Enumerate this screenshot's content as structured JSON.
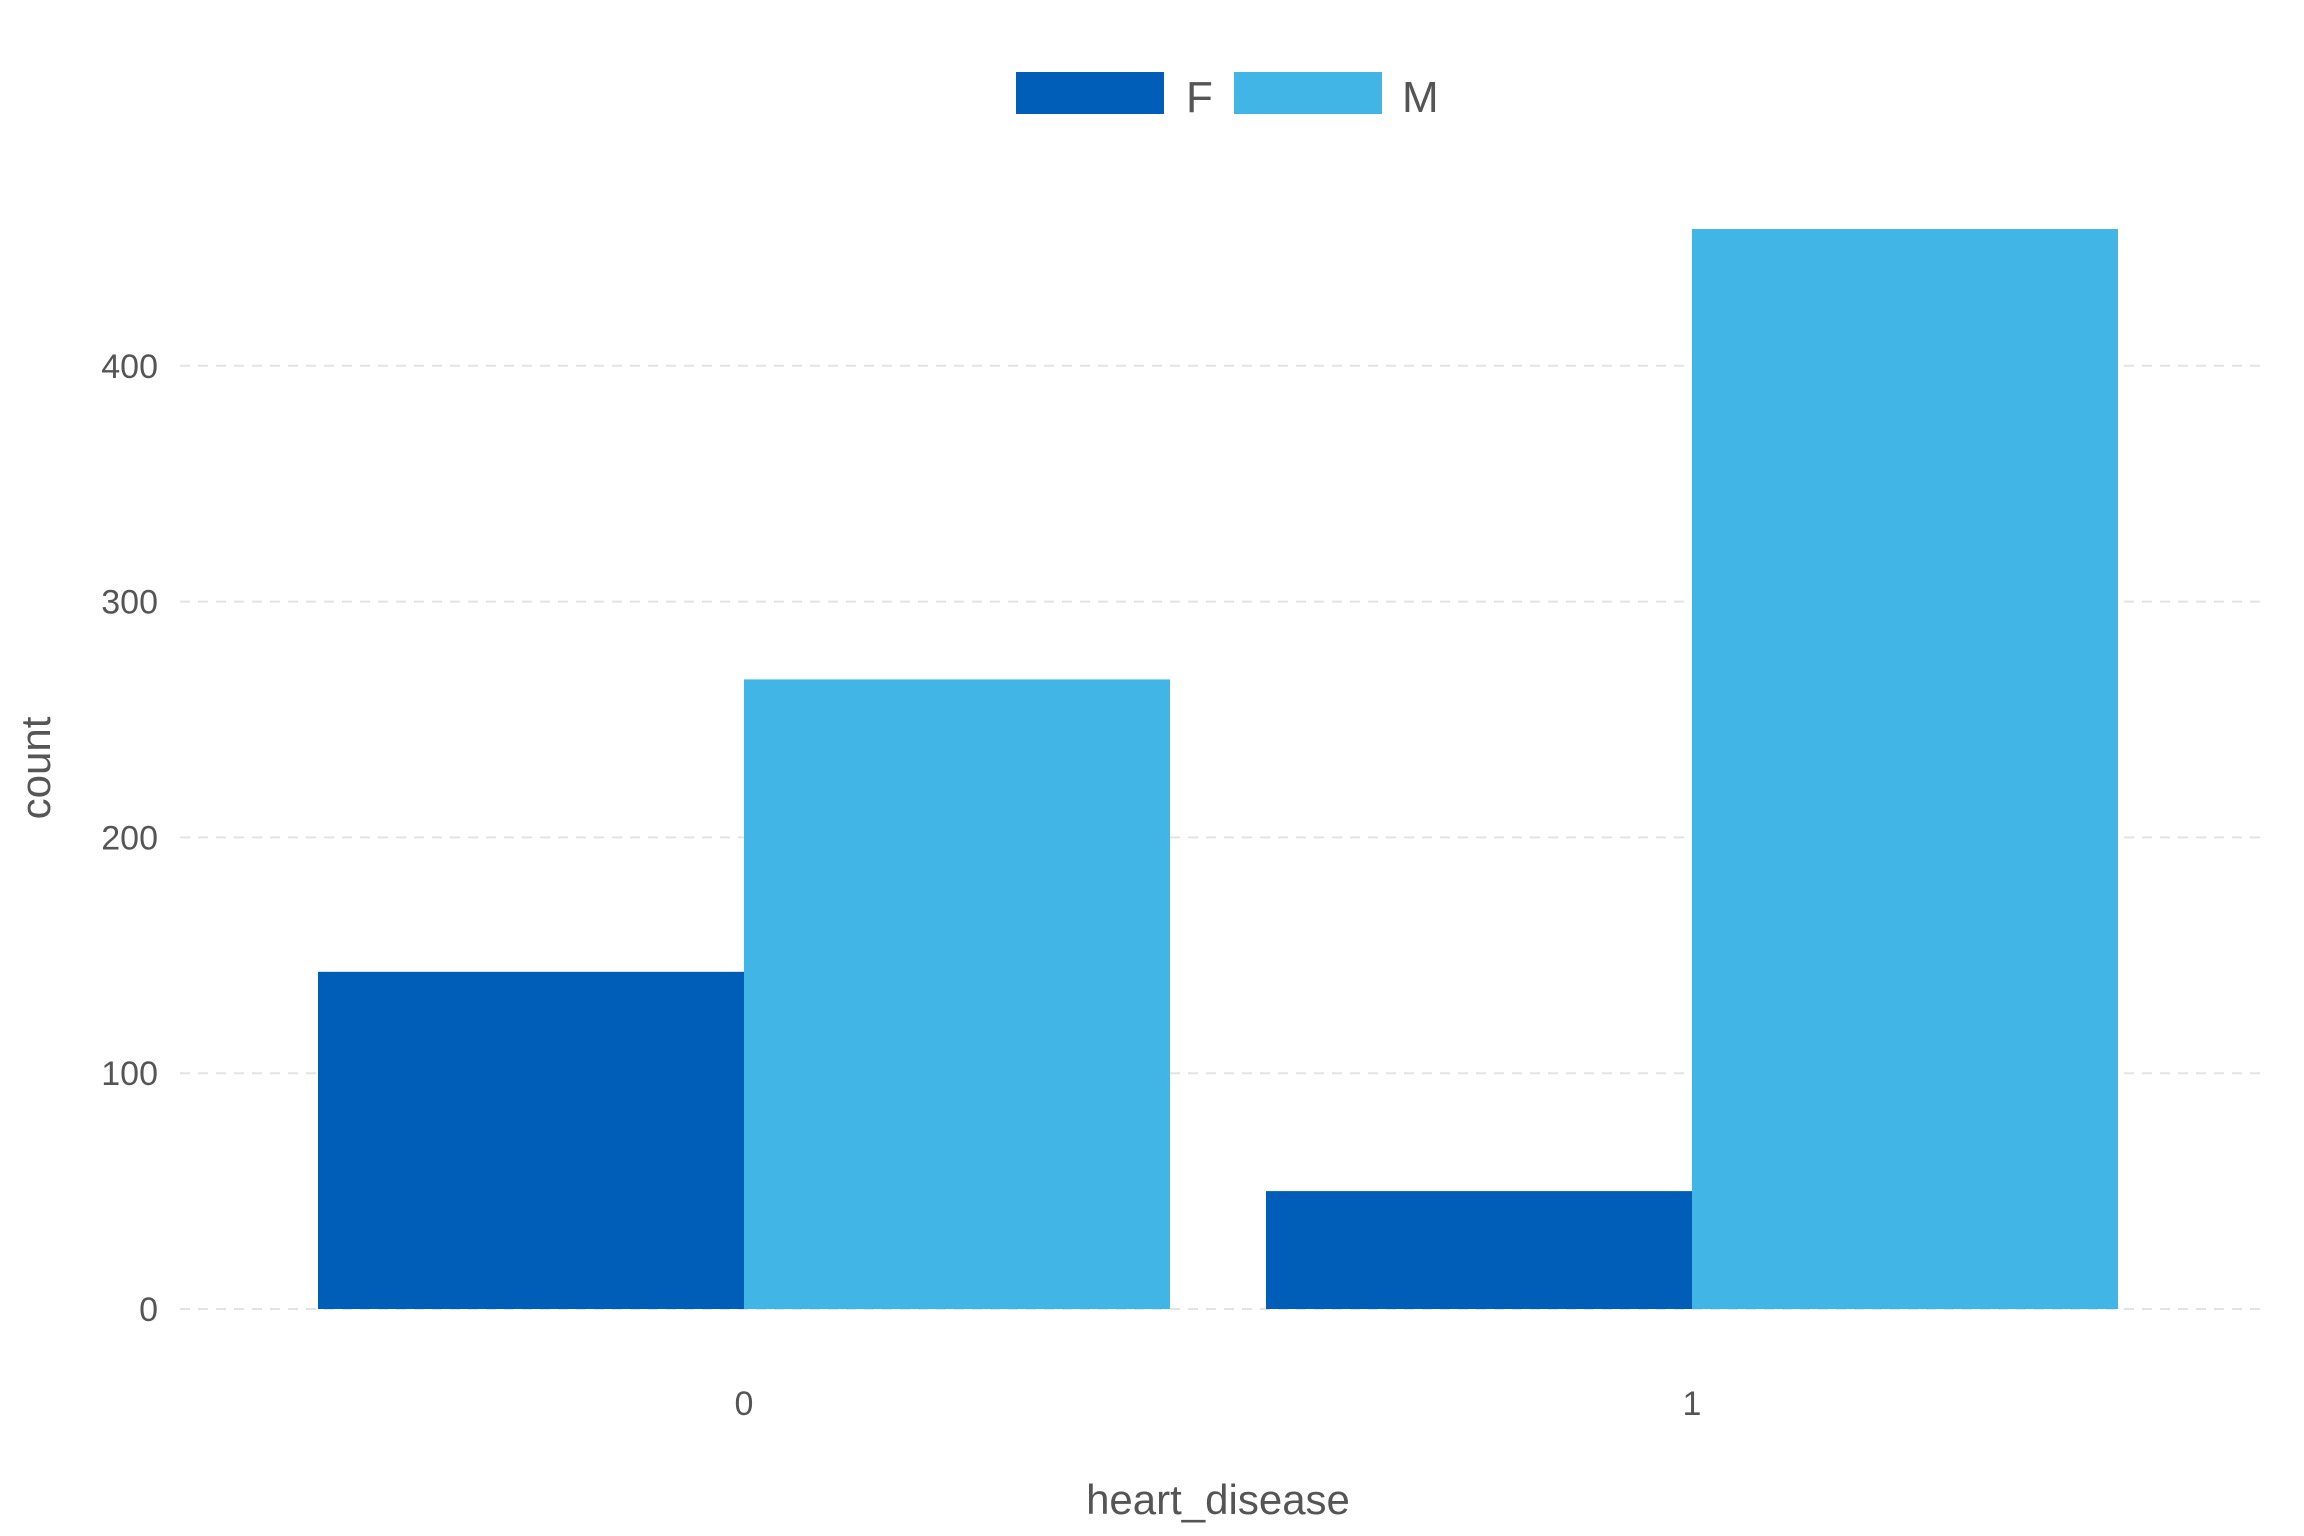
{
  "chart_data": {
    "type": "bar",
    "xlabel": "heart_disease",
    "ylabel": "count",
    "categories": [
      "0",
      "1"
    ],
    "series": [
      {
        "name": "F",
        "values": [
          143,
          50
        ],
        "color": "#005eb8"
      },
      {
        "name": "M",
        "values": [
          267,
          458
        ],
        "color": "#41b6e6"
      }
    ],
    "ylim": [
      0,
      470
    ],
    "yticks": [
      0,
      100,
      200,
      300,
      400
    ],
    "grid": "horizontal-dashed",
    "legend": "top-center"
  }
}
